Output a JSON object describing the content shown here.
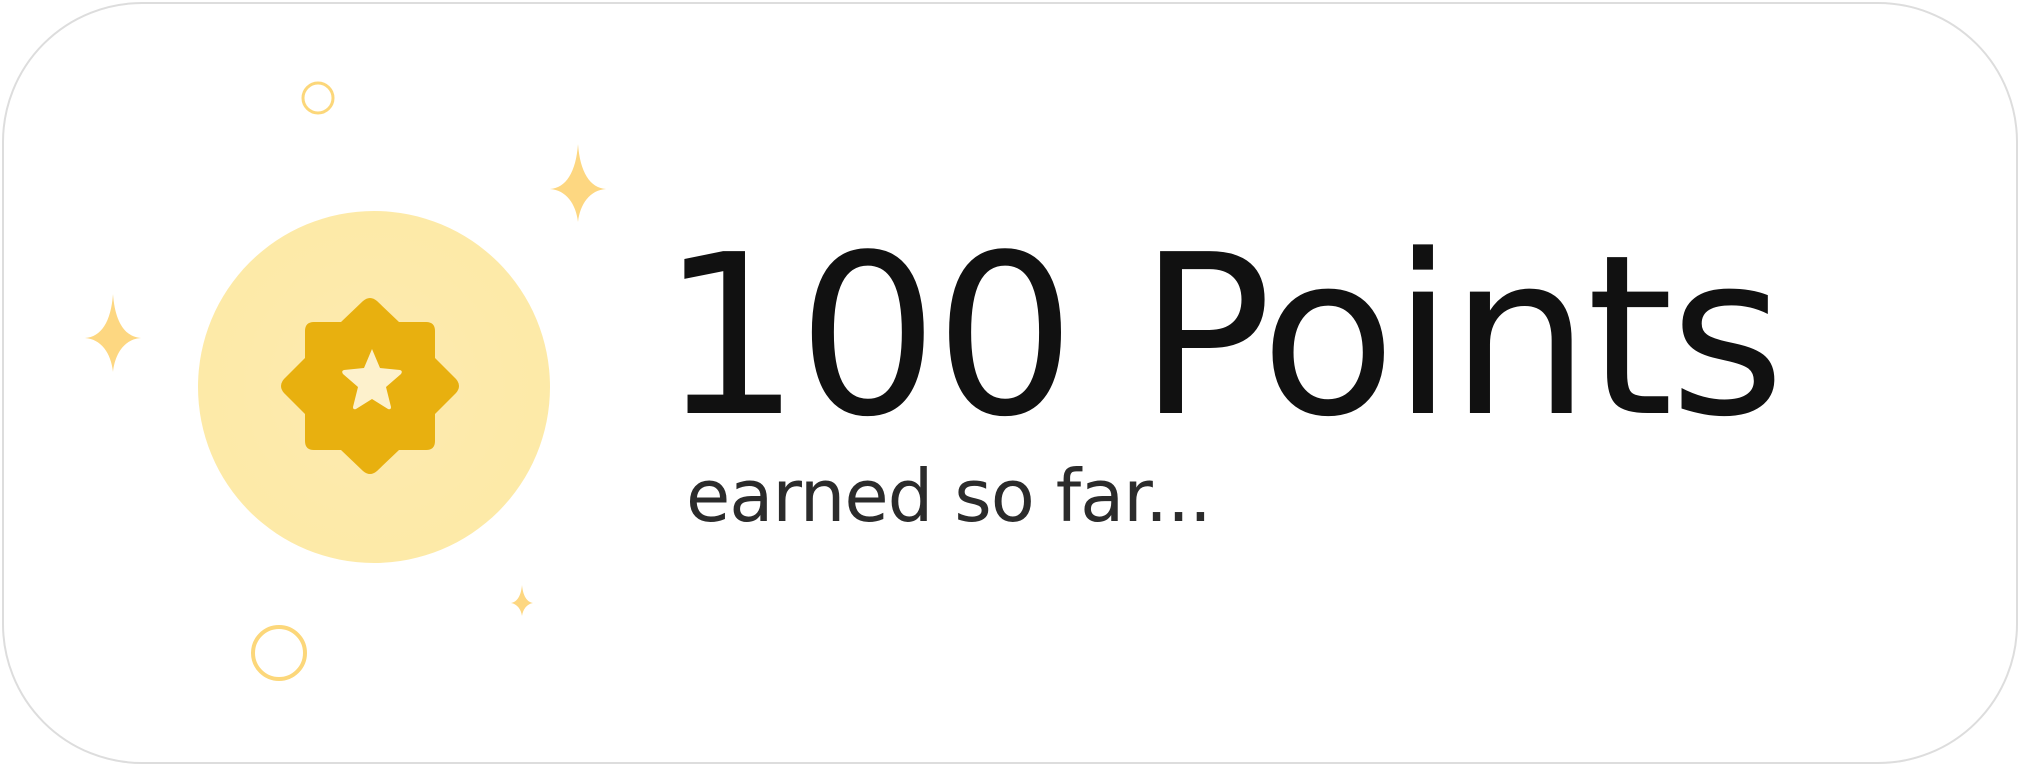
{
  "reward": {
    "points_text": "100 Points",
    "subtitle": "earned so far..."
  },
  "badge": {
    "icon": "star-badge-icon",
    "circle_color": "#fde9ad",
    "badge_color": "#e8b00f",
    "star_color": "#fdf1cc"
  },
  "decorations": {
    "accent_color": "#fcd77a",
    "items": [
      "sparkle-icon",
      "sparkle-icon",
      "sparkle-icon",
      "ring-icon",
      "ring-icon"
    ]
  }
}
